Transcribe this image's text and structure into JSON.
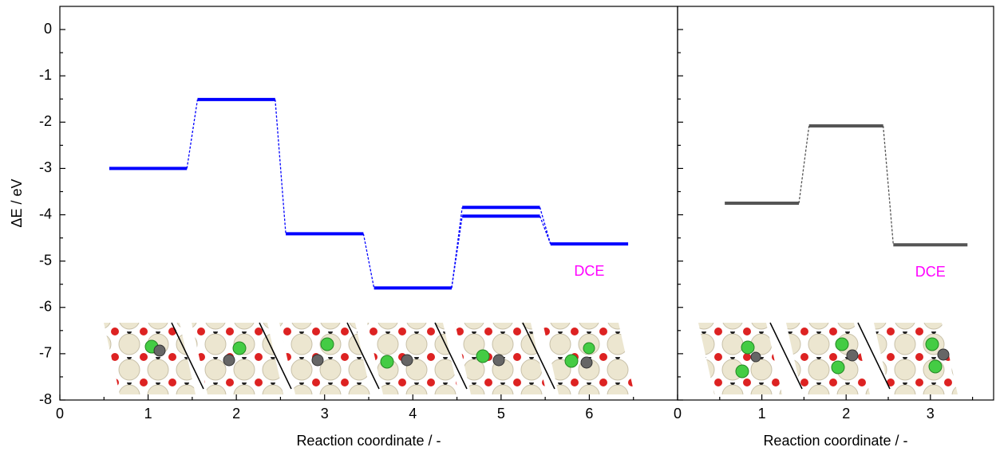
{
  "chart_data": [
    {
      "type": "energy-profile",
      "xlabel": "Reaction coordinate / -",
      "ylabel": "ΔE / eV",
      "xlim": [
        0,
        7
      ],
      "xticks": [
        0,
        1,
        2,
        3,
        4,
        5,
        6
      ],
      "ylim": [
        -8,
        0.5
      ],
      "yticks": [
        -8,
        -7,
        -6,
        -5,
        -4,
        -3,
        -2,
        -1,
        0
      ],
      "x": [
        1,
        2,
        3,
        4,
        5,
        6
      ],
      "series": [
        {
          "color": "#0000ff",
          "values": [
            -3.0,
            -1.51,
            -4.41,
            -5.58,
            -3.84,
            -4.63
          ]
        },
        {
          "color": "#0000ff",
          "values": [
            null,
            null,
            null,
            null,
            -4.03,
            null
          ]
        }
      ],
      "annotation": {
        "text": "DCE",
        "color": "#ff00ff"
      }
    },
    {
      "type": "energy-profile",
      "xlabel": "Reaction coordinate / -",
      "xlim": [
        0,
        3.75
      ],
      "xticks": [
        0,
        1,
        2,
        3
      ],
      "ylim": [
        -8,
        0.5
      ],
      "yticks": [
        -8,
        -7,
        -6,
        -5,
        -4,
        -3,
        -2,
        -1,
        0
      ],
      "x": [
        1,
        2,
        3
      ],
      "series": [
        {
          "color": "#555555",
          "values": [
            -3.75,
            -2.08,
            -4.65
          ]
        }
      ],
      "annotation": {
        "text": "DCE",
        "color": "#ff00ff"
      }
    }
  ]
}
